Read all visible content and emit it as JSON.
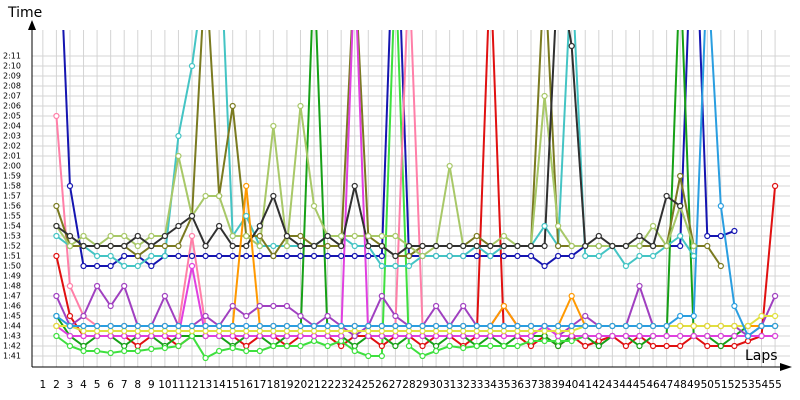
{
  "chart_data": {
    "type": "line",
    "y_label": "Time",
    "x_label": "Laps",
    "xlim": [
      0.2,
      56.1
    ],
    "xticks": [
      1,
      2,
      3,
      4,
      5,
      6,
      7,
      8,
      9,
      10,
      11,
      12,
      13,
      14,
      15,
      16,
      17,
      18,
      19,
      20,
      21,
      22,
      23,
      24,
      25,
      26,
      27,
      28,
      29,
      30,
      31,
      32,
      33,
      34,
      35,
      36,
      37,
      38,
      39,
      40,
      41,
      42,
      43,
      44,
      45,
      46,
      47,
      48,
      49,
      50,
      51,
      52,
      53,
      54,
      55
    ],
    "ylim": [
      99.9,
      133.6
    ],
    "yticks": [
      {
        "value": 101,
        "label": "1:41"
      },
      {
        "value": 102,
        "label": "1:42"
      },
      {
        "value": 103,
        "label": "1:43"
      },
      {
        "value": 104,
        "label": "1:44"
      },
      {
        "value": 105,
        "label": "1:45"
      },
      {
        "value": 106,
        "label": "1:46"
      },
      {
        "value": 107,
        "label": "1:47"
      },
      {
        "value": 108,
        "label": "1:48"
      },
      {
        "value": 109,
        "label": "1:49"
      },
      {
        "value": 110,
        "label": "1:50"
      },
      {
        "value": 111,
        "label": "1:51"
      },
      {
        "value": 112,
        "label": "1:52"
      },
      {
        "value": 113,
        "label": "1:53"
      },
      {
        "value": 114,
        "label": "1:54"
      },
      {
        "value": 115,
        "label": "1:55"
      },
      {
        "value": 116,
        "label": "1:56"
      },
      {
        "value": 117,
        "label": "1:57"
      },
      {
        "value": 118,
        "label": "1:58"
      },
      {
        "value": 119,
        "label": "1:59"
      },
      {
        "value": 120,
        "label": "2:00"
      },
      {
        "value": 121,
        "label": "2:01"
      },
      {
        "value": 122,
        "label": "2:02"
      },
      {
        "value": 123,
        "label": "2:03"
      },
      {
        "value": 124,
        "label": "2:04"
      },
      {
        "value": 125,
        "label": "2:05"
      },
      {
        "value": 126,
        "label": "2:06"
      },
      {
        "value": 127,
        "label": "2:07"
      },
      {
        "value": 128,
        "label": "2:08"
      },
      {
        "value": 129,
        "label": "2:09"
      },
      {
        "value": 130,
        "label": "2:10"
      },
      {
        "value": 131,
        "label": "2:11"
      }
    ],
    "grid": true,
    "x": [
      1,
      2,
      3,
      4,
      5,
      6,
      7,
      8,
      9,
      10,
      11,
      12,
      13,
      14,
      15,
      16,
      17,
      18,
      19,
      20,
      21,
      22,
      23,
      24,
      25,
      26,
      27,
      28,
      29,
      30,
      31,
      32,
      33,
      34,
      35,
      36,
      37,
      38,
      39,
      40,
      41,
      42,
      43,
      44,
      45,
      46,
      47,
      48,
      49,
      50,
      51,
      52,
      53,
      54,
      55
    ],
    "series": [
      {
        "color": "#1515b0",
        "values": [
          null,
          150,
          118,
          110,
          110,
          110,
          111,
          111,
          110,
          111,
          111,
          111,
          111,
          111,
          111,
          111,
          111,
          111,
          111,
          111,
          111,
          111,
          111,
          111,
          111,
          111,
          150,
          111,
          111,
          111,
          111,
          111,
          111,
          111,
          111,
          111,
          111,
          110,
          111,
          111,
          112,
          112,
          112,
          112,
          112,
          112,
          112,
          112,
          150,
          113,
          113,
          113.5,
          null,
          null,
          null
        ]
      },
      {
        "color": "#e01010",
        "values": [
          null,
          111,
          105,
          103,
          103,
          103,
          103,
          102,
          103,
          103,
          102,
          103,
          103,
          103,
          103,
          102,
          103,
          103,
          102,
          103,
          103,
          103,
          102,
          103,
          103,
          102,
          103,
          103,
          102,
          103,
          103,
          102,
          103,
          140,
          103,
          103,
          102,
          103,
          102,
          103,
          102,
          102.5,
          103,
          102,
          103,
          102,
          102,
          102,
          103,
          102,
          102,
          102,
          102.5,
          103,
          118
        ]
      },
      {
        "color": "#16a016",
        "values": [
          null,
          105,
          103,
          102,
          103,
          103,
          102,
          103,
          103,
          102,
          103,
          103,
          103,
          103,
          102,
          103,
          103,
          102,
          103,
          103,
          140,
          103,
          103,
          102,
          103,
          103,
          102,
          103,
          103,
          102,
          103,
          103,
          102,
          103,
          102,
          103,
          103,
          103,
          102,
          103,
          103,
          102,
          103,
          103,
          102,
          103,
          103,
          140,
          103,
          103,
          102,
          103,
          104,
          104,
          104
        ]
      },
      {
        "color": "#3ee03e",
        "values": [
          null,
          103,
          102,
          101.5,
          101.5,
          101.3,
          101.5,
          101.5,
          101.7,
          101.8,
          102,
          103,
          100.8,
          101.5,
          101.8,
          101.5,
          101.5,
          102,
          102,
          102,
          102.5,
          102,
          102.5,
          101.5,
          101,
          101,
          140,
          102,
          101,
          101.5,
          102,
          101.8,
          102,
          102,
          102,
          102,
          102.5,
          102.5,
          102.5,
          102.5,
          103,
          103,
          103,
          103,
          103,
          103,
          103,
          103,
          103,
          103,
          103,
          103,
          103,
          103,
          103
        ]
      },
      {
        "color": "#ff7fa8",
        "values": [
          null,
          125,
          108,
          105,
          104,
          104,
          104,
          104,
          104,
          104,
          104,
          113,
          104,
          104,
          104,
          104,
          104,
          104,
          104,
          104,
          104,
          104,
          104,
          104,
          104,
          104,
          104,
          140,
          104,
          104,
          104,
          104,
          104,
          104,
          104,
          104,
          104,
          104,
          104,
          104,
          104,
          104,
          104,
          104,
          104,
          104,
          104,
          104,
          104,
          104,
          104,
          104,
          104,
          104,
          104
        ]
      },
      {
        "color": "#44c4c4",
        "values": [
          null,
          113,
          112,
          112,
          111,
          111,
          110,
          110,
          111,
          111,
          123,
          130,
          140,
          145,
          113,
          115,
          112,
          112,
          112,
          112,
          112,
          113,
          113,
          112,
          112,
          110,
          110,
          110,
          111,
          111,
          111,
          111,
          112,
          111,
          112,
          112,
          112,
          114,
          112,
          140,
          111,
          111,
          112,
          110,
          111,
          111,
          112,
          113,
          111,
          null,
          null,
          null,
          null,
          null,
          null
        ]
      },
      {
        "color": "#7a7a20",
        "values": [
          null,
          116,
          112,
          112,
          112,
          112,
          112,
          111,
          112,
          112,
          112,
          115,
          140,
          117,
          126,
          113,
          113,
          111,
          113,
          113,
          112,
          112,
          112,
          140,
          113,
          112,
          111,
          111,
          112,
          112,
          112,
          112,
          113,
          112,
          112,
          112,
          112,
          140,
          112,
          112,
          112,
          112,
          112,
          112,
          112,
          112,
          112,
          119,
          112,
          112,
          110,
          null,
          null,
          null,
          null
        ]
      },
      {
        "color": "#a8c868",
        "values": [
          null,
          114,
          112,
          113,
          112,
          113,
          113,
          112,
          113,
          113,
          121,
          115,
          117,
          117,
          113,
          113,
          112,
          124,
          112,
          126,
          116,
          113,
          113,
          113,
          113,
          113,
          113,
          112,
          111,
          112,
          120,
          112,
          112,
          112,
          113,
          112,
          112,
          127,
          114,
          112,
          112,
          112,
          112,
          112,
          112,
          114,
          112,
          116,
          112,
          null,
          null,
          null,
          null,
          null,
          null
        ]
      },
      {
        "color": "#a040c0",
        "values": [
          null,
          107,
          104,
          105,
          108,
          106,
          108,
          104,
          104,
          107,
          104,
          104,
          105,
          104,
          106,
          105,
          106,
          106,
          106,
          105,
          104,
          105,
          104,
          103,
          104,
          107,
          105,
          104,
          104,
          106,
          104,
          106,
          104,
          104,
          106,
          104,
          104,
          104,
          103,
          104,
          105,
          104,
          104,
          104,
          108,
          104,
          104,
          104,
          104,
          104,
          104,
          104,
          103,
          104,
          107
        ]
      },
      {
        "color": "#e040e0",
        "values": [
          null,
          104,
          103,
          103,
          103,
          103,
          103,
          103,
          103,
          103,
          103,
          110,
          103,
          103,
          103,
          103,
          103,
          103,
          103,
          103,
          103,
          103,
          103,
          140,
          103,
          103,
          103,
          103,
          103,
          103,
          103,
          103,
          103,
          103,
          103,
          103,
          103,
          104,
          103,
          103,
          103,
          103,
          103,
          103,
          103,
          103,
          103,
          103,
          103,
          103,
          103,
          103,
          103,
          103,
          103
        ]
      },
      {
        "color": "#303030",
        "values": [
          null,
          114,
          113,
          112,
          112,
          112,
          112,
          113,
          112,
          113,
          114,
          115,
          112,
          114,
          112,
          112,
          114,
          117,
          113,
          112,
          112,
          113,
          112,
          118,
          112,
          112,
          111,
          112,
          112,
          112,
          112,
          112,
          112,
          112,
          112,
          112,
          112,
          112,
          140,
          132,
          112,
          113,
          112,
          112,
          113,
          112,
          117,
          116,
          null,
          null,
          null,
          null,
          null,
          null,
          null
        ]
      },
      {
        "color": "#ff9900",
        "values": [
          null,
          104,
          104,
          104,
          104,
          104,
          104,
          104,
          104,
          104,
          104,
          104,
          104,
          104,
          104,
          118,
          104,
          104,
          104,
          104,
          104,
          104,
          104,
          104,
          104,
          104,
          104,
          104,
          104,
          104,
          104,
          104,
          104,
          104,
          106,
          104,
          104,
          104,
          104,
          107,
          104,
          104,
          104,
          104,
          104,
          104,
          104,
          104,
          104,
          104,
          104,
          104,
          104,
          104,
          104
        ]
      },
      {
        "color": "#e0e040",
        "values": [
          null,
          104,
          104,
          103.5,
          103.5,
          103.5,
          103.5,
          103.5,
          103.5,
          103.5,
          103.5,
          103.5,
          103.5,
          103.5,
          103.5,
          103.5,
          103.5,
          103.5,
          103.5,
          103.5,
          103.5,
          103.5,
          103.5,
          103.5,
          103.5,
          103.5,
          103.5,
          103.5,
          103.5,
          103.5,
          103.5,
          103.5,
          103.5,
          103.5,
          103.5,
          103.5,
          103.5,
          103.5,
          103.5,
          103.5,
          104,
          104,
          104,
          104,
          104,
          104,
          104,
          104,
          104,
          104,
          104,
          104,
          104,
          105,
          105
        ]
      },
      {
        "color": "#2a9ee0",
        "values": [
          null,
          105,
          104,
          104,
          104,
          104,
          104,
          104,
          104,
          104,
          104,
          104,
          104,
          104,
          104,
          104,
          104,
          104,
          104,
          104,
          104,
          104,
          104,
          104,
          104,
          104,
          104,
          104,
          104,
          104,
          104,
          104,
          104,
          104,
          104,
          104,
          104,
          104,
          104,
          104,
          104,
          104,
          104,
          104,
          104,
          104,
          104,
          105,
          105,
          140,
          116,
          106,
          103,
          104,
          104
        ]
      }
    ]
  }
}
